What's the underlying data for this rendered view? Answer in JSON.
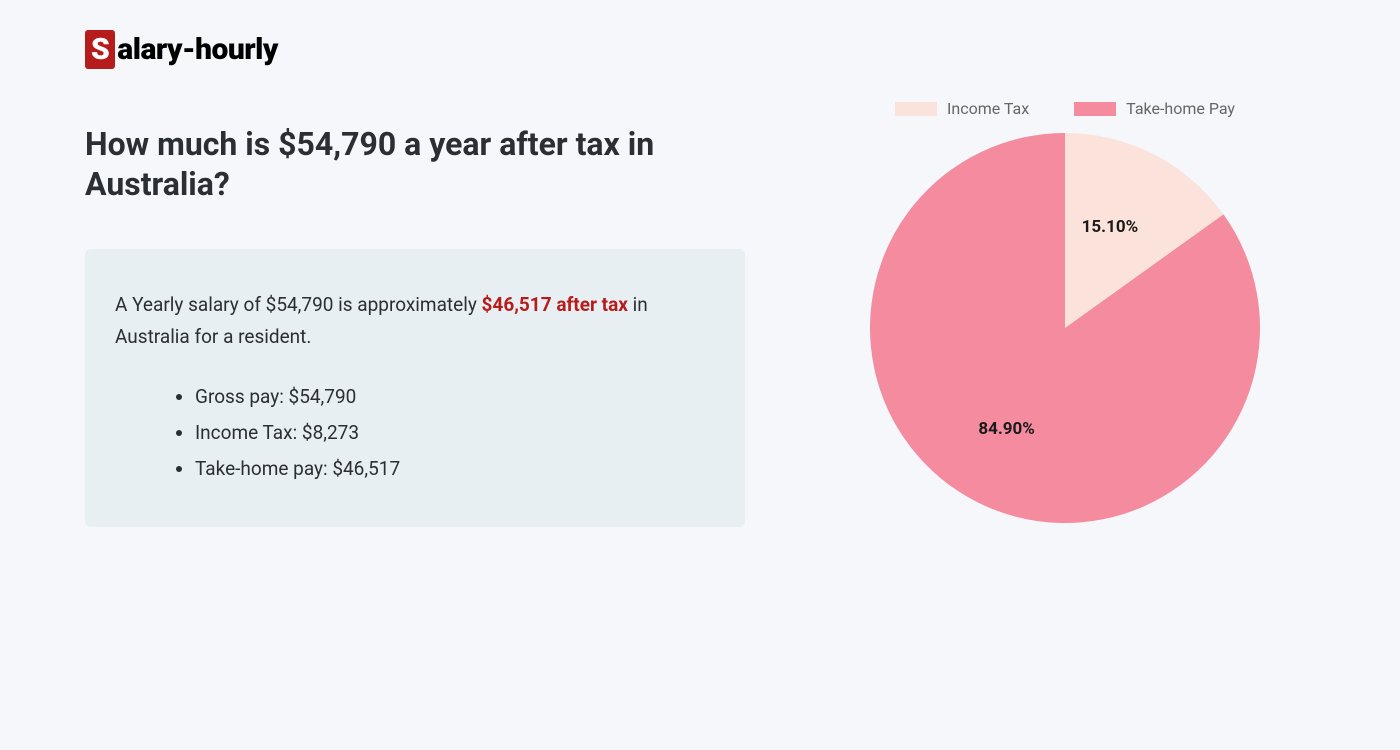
{
  "logo": {
    "badge_letter": "S",
    "rest": "alary-hourly",
    "badge_bg": "#b71c1c"
  },
  "heading": "How much is $54,790 a year after tax in Australia?",
  "summary": {
    "pre": "A Yearly salary of $54,790 is approximately ",
    "highlight": "$46,517 after tax",
    "post": " in Australia for a resident.",
    "highlight_color": "#b71c1c"
  },
  "bullets": [
    "Gross pay: $54,790",
    "Income Tax: $8,273",
    "Take-home pay: $46,517"
  ],
  "info_box_bg": "#e8eff2",
  "chart": {
    "type": "pie",
    "radius": 195,
    "background_color": "#f5f7fa",
    "slices": [
      {
        "label": "Income Tax",
        "value": 15.1,
        "color": "#fbe3db",
        "display": "15.10%"
      },
      {
        "label": "Take-home Pay",
        "value": 84.9,
        "color": "#f48b9f",
        "display": "84.90%"
      }
    ],
    "legend_text_color": "#666666",
    "label_fontsize": 17,
    "label_fontweight": 700
  }
}
